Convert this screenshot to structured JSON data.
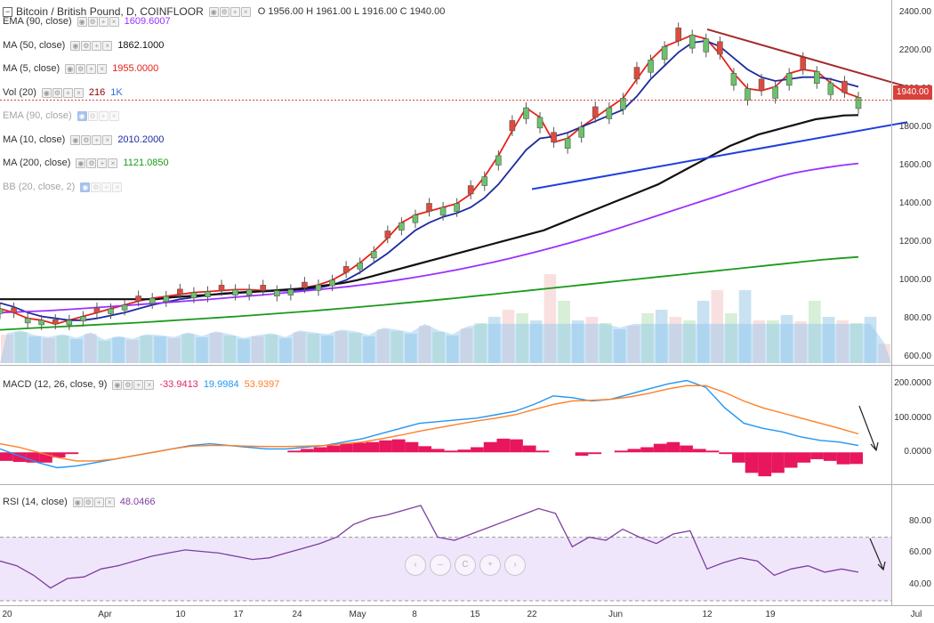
{
  "header": {
    "title": "Bitcoin / British Pound, D, COINFLOOR",
    "ohlc": "O 1956.00 H 1961.00 L 1916.00 C 1940.00"
  },
  "indicators": [
    {
      "label": "EMA (90, close)",
      "value": "1609.6007",
      "color": "#9b30ff",
      "faded": false
    },
    {
      "label": "MA (50, close)",
      "value": "1862.1000",
      "color": "#111111",
      "faded": false
    },
    {
      "label": "MA (5, close)",
      "value": "1955.0000",
      "color": "#e8221b",
      "faded": false
    },
    {
      "label": "Vol (20)",
      "value": "216",
      "value2": "1K",
      "color": "#8b0000",
      "color2": "#2f6fd6",
      "faded": false
    },
    {
      "label": "EMA (90, close)",
      "value": "",
      "color": "#999",
      "faded": true,
      "eye": true
    },
    {
      "label": "MA (10, close)",
      "value": "2010.2000",
      "color": "#1d2a9e",
      "faded": false
    },
    {
      "label": "MA (200, close)",
      "value": "1121.0850",
      "color": "#1a9a1a",
      "faded": false
    },
    {
      "label": "BB (20, close, 2)",
      "value": "",
      "color": "#999",
      "faded": true,
      "eye": true
    }
  ],
  "last_price": "1940.00",
  "macd_legend": {
    "label": "MACD (12, 26, close, 9)",
    "v1": "-33.9413",
    "v2": "19.9984",
    "v3": "53.9397"
  },
  "rsi_legend": {
    "label": "RSI (14, close)",
    "v1": "48.0466"
  },
  "nav_buttons": [
    "‹",
    "–",
    "C",
    "+",
    "›"
  ],
  "chart_data": [
    {
      "type": "line",
      "title": "Bitcoin / British Pound, D, COINFLOOR",
      "pane": "price",
      "ylim": [
        580,
        2440
      ],
      "yticks": [
        600,
        800,
        1000,
        1200,
        1400,
        1600,
        1800,
        2000,
        2200,
        2400
      ],
      "x_labels": [
        "20",
        "Apr",
        "10",
        "17",
        "24",
        "May",
        "8",
        "15",
        "22",
        "Jun",
        "12",
        "19",
        "Jul"
      ],
      "series": [
        {
          "name": "MA (5, close)",
          "color": "#e8221b",
          "values": [
            850,
            830,
            800,
            790,
            770,
            790,
            810,
            830,
            850,
            870,
            890,
            905,
            915,
            925,
            935,
            940,
            945,
            950,
            950,
            945,
            945,
            950,
            960,
            975,
            1000,
            1040,
            1090,
            1150,
            1220,
            1300,
            1340,
            1360,
            1380,
            1400,
            1450,
            1540,
            1650,
            1780,
            1900,
            1850,
            1720,
            1740,
            1800,
            1850,
            1900,
            1950,
            2050,
            2150,
            2220,
            2250,
            2280,
            2260,
            2180,
            2080,
            2000,
            1990,
            2010,
            2080,
            2100,
            2090,
            2030,
            1980,
            1955
          ]
        },
        {
          "name": "MA (10, close)",
          "color": "#1d2a9e",
          "values": [
            880,
            860,
            830,
            810,
            800,
            790,
            790,
            800,
            815,
            830,
            850,
            870,
            885,
            900,
            910,
            920,
            930,
            935,
            940,
            940,
            943,
            946,
            950,
            960,
            975,
            1000,
            1040,
            1090,
            1140,
            1200,
            1260,
            1300,
            1330,
            1350,
            1380,
            1430,
            1500,
            1590,
            1680,
            1740,
            1750,
            1770,
            1800,
            1830,
            1860,
            1890,
            1960,
            2050,
            2120,
            2190,
            2240,
            2250,
            2220,
            2160,
            2100,
            2060,
            2040,
            2050,
            2060,
            2060,
            2050,
            2030,
            2010
          ]
        },
        {
          "name": "MA (50, close)",
          "color": "#111111",
          "values": [
            900,
            900,
            900,
            900,
            900,
            900,
            900,
            900,
            900,
            900,
            900,
            900,
            910,
            915,
            920,
            925,
            930,
            935,
            940,
            945,
            950,
            955,
            965,
            975,
            985,
            1000,
            1020,
            1040,
            1060,
            1080,
            1100,
            1120,
            1140,
            1160,
            1180,
            1200,
            1220,
            1240,
            1260,
            1290,
            1320,
            1350,
            1380,
            1410,
            1440,
            1470,
            1500,
            1540,
            1580,
            1620,
            1660,
            1700,
            1730,
            1760,
            1780,
            1800,
            1820,
            1840,
            1850,
            1860,
            1862
          ]
        },
        {
          "name": "EMA (90, close)",
          "color": "#9b30ff",
          "values": [
            830,
            833,
            836,
            840,
            845,
            850,
            856,
            862,
            868,
            874,
            880,
            886,
            892,
            898,
            905,
            912,
            919,
            926,
            934,
            942,
            950,
            958,
            967,
            977,
            988,
            1000,
            1013,
            1027,
            1042,
            1058,
            1075,
            1093,
            1112,
            1132,
            1153,
            1175,
            1198,
            1222,
            1247,
            1273,
            1300,
            1327,
            1354,
            1381,
            1408,
            1435,
            1462,
            1489,
            1515,
            1540,
            1560,
            1575,
            1588,
            1600,
            1609.6
          ]
        },
        {
          "name": "MA (200, close)",
          "color": "#1a9a1a",
          "values": [
            740,
            745,
            750,
            755,
            760,
            765,
            770,
            775,
            780,
            786,
            792,
            798,
            804,
            810,
            817,
            824,
            831,
            838,
            846,
            854,
            862,
            870,
            879,
            888,
            897,
            906,
            916,
            926,
            936,
            946,
            956,
            966,
            976,
            986,
            996,
            1006,
            1016,
            1026,
            1036,
            1046,
            1056,
            1066,
            1076,
            1086,
            1096,
            1106,
            1114,
            1121
          ]
        }
      ],
      "trendlines": [
        {
          "name": "resistance",
          "color": "#a52a2a",
          "from": [
            "12",
            "2310"
          ],
          "to": [
            "Jul",
            "2010"
          ]
        },
        {
          "name": "support",
          "color": "#1f3fe0",
          "from": [
            "22",
            "1475"
          ],
          "to": [
            "Jul",
            "1825"
          ]
        }
      ]
    },
    {
      "type": "bar",
      "pane": "volume",
      "title": "Vol (20)",
      "values": [
        320,
        350,
        300,
        280,
        310,
        270,
        330,
        250,
        290,
        260,
        310,
        300,
        280,
        330,
        290,
        340,
        310,
        270,
        300,
        320,
        280,
        350,
        330,
        310,
        360,
        340,
        300,
        380,
        360,
        330,
        420,
        350,
        310,
        390,
        450,
        520,
        600,
        560,
        480,
        1000,
        700,
        480,
        520,
        450,
        380,
        420,
        560,
        600,
        520,
        480,
        700,
        820,
        560,
        820,
        480,
        480,
        540,
        470,
        700,
        520,
        480,
        450,
        520,
        216
      ]
    },
    {
      "type": "line",
      "pane": "macd",
      "title": "MACD (12, 26, close, 9)",
      "ylim": [
        -80,
        240
      ],
      "yticks": [
        0,
        100,
        200
      ],
      "series": [
        {
          "name": "MACD",
          "color": "#2196f3",
          "values": [
            10,
            -10,
            -30,
            -45,
            -40,
            -30,
            -20,
            -10,
            0,
            10,
            20,
            25,
            20,
            15,
            10,
            10,
            15,
            20,
            30,
            40,
            55,
            70,
            85,
            90,
            95,
            100,
            110,
            120,
            140,
            165,
            160,
            150,
            155,
            170,
            185,
            200,
            210,
            190,
            130,
            85,
            70,
            60,
            45,
            35,
            30,
            20
          ]
        },
        {
          "name": "Signal",
          "color": "#ff7f27",
          "values": [
            25,
            15,
            0,
            -15,
            -25,
            -25,
            -20,
            -10,
            0,
            10,
            18,
            20,
            20,
            18,
            17,
            17,
            18,
            20,
            25,
            30,
            40,
            50,
            62,
            72,
            82,
            92,
            100,
            110,
            125,
            140,
            150,
            152,
            155,
            162,
            172,
            185,
            195,
            195,
            175,
            150,
            130,
            115,
            100,
            85,
            70,
            54
          ]
        }
      ],
      "histogram": [
        -25,
        -28,
        -30,
        -30,
        -15,
        -5,
        0,
        0,
        0,
        0,
        0,
        0,
        0,
        0,
        0,
        0,
        0,
        0,
        0,
        0,
        0,
        0,
        5,
        10,
        15,
        20,
        25,
        28,
        30,
        35,
        38,
        30,
        18,
        10,
        5,
        8,
        15,
        30,
        40,
        38,
        20,
        5,
        0,
        0,
        -10,
        -5,
        0,
        5,
        10,
        15,
        25,
        30,
        20,
        10,
        5,
        -5,
        -30,
        -60,
        -70,
        -60,
        -45,
        -30,
        -20,
        -25,
        -35,
        -34
      ]
    },
    {
      "type": "line",
      "pane": "rsi",
      "title": "RSI (14, close)",
      "ylim": [
        30,
        100
      ],
      "yticks": [
        40,
        60,
        80
      ],
      "band": [
        30,
        70
      ],
      "series": [
        {
          "name": "RSI",
          "color": "#7b3fa0",
          "values": [
            55,
            52,
            46,
            38,
            44,
            45,
            50,
            52,
            55,
            58,
            60,
            62,
            61,
            60,
            58,
            56,
            57,
            60,
            63,
            66,
            70,
            78,
            82,
            84,
            87,
            90,
            70,
            68,
            72,
            76,
            80,
            84,
            88,
            85,
            64,
            70,
            68,
            75,
            70,
            66,
            72,
            74,
            50,
            54,
            57,
            55,
            46,
            50,
            52,
            48,
            50,
            48
          ]
        }
      ]
    }
  ]
}
